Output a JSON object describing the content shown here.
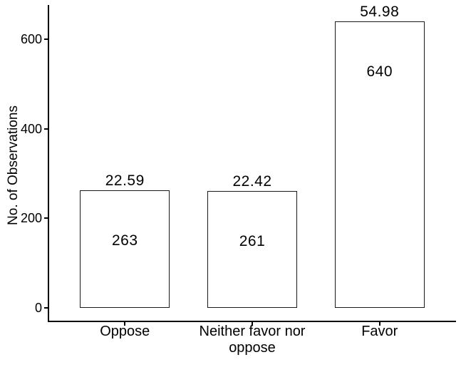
{
  "figure": {
    "background": "#ffffff",
    "text_color": "#000000",
    "axis_color": "#000000",
    "bar_fill": "#ffffff",
    "bar_border_color": "#1a1a1a"
  },
  "chart_data": {
    "type": "bar",
    "title": "",
    "xlabel": "",
    "ylabel": "No. of Observations",
    "categories": [
      "Oppose",
      "Neither favor nor oppose",
      "Favor"
    ],
    "values": [
      263,
      261,
      640
    ],
    "count_labels_inside_bars": [
      "263",
      "261",
      "640"
    ],
    "percent_labels_above_bars": [
      "22.59",
      "22.42",
      "54.98"
    ],
    "yticks": [
      0,
      200,
      400,
      600
    ],
    "ylim": [
      0,
      672
    ],
    "grid": "off",
    "legend": "none"
  }
}
